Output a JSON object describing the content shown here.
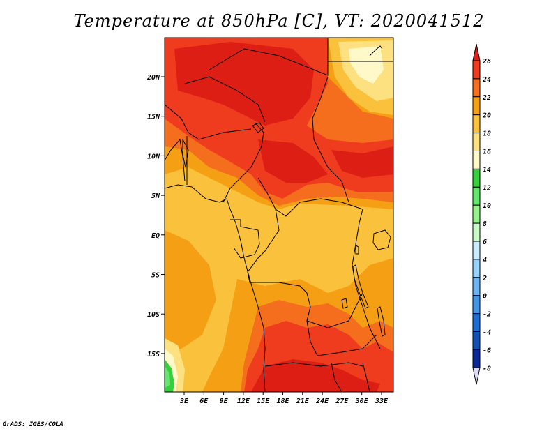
{
  "title": "Temperature at 850hPa [C], VT: 2020041512",
  "credit": "GrADS: IGES/COLA",
  "map": {
    "lat_labels": [
      "20N",
      "15N",
      "10N",
      "5N",
      "EQ",
      "5S",
      "10S",
      "15S"
    ],
    "lon_labels": [
      "3E",
      "6E",
      "9E",
      "12E",
      "15E",
      "18E",
      "21E",
      "24E",
      "27E",
      "30E",
      "33E"
    ]
  },
  "colorbar": {
    "levels": [
      "26",
      "24",
      "22",
      "20",
      "18",
      "16",
      "14",
      "12",
      "10",
      "8",
      "6",
      "4",
      "2",
      "0",
      "-2",
      "-4",
      "-6",
      "-8"
    ],
    "colors": [
      "#dc1e14",
      "#f03c1e",
      "#f56e1e",
      "#f5a014",
      "#fac23c",
      "#fde080",
      "#fff8c8",
      "#37d03c",
      "#64e66e",
      "#96f08c",
      "#c8fac8",
      "#c8ebff",
      "#96d2fa",
      "#6eb4f0",
      "#4696e6",
      "#1e6ed2",
      "#1450b4",
      "#0a2896",
      "#0a0a6e"
    ],
    "over_color": "#dc1e14",
    "under_color": "#dcdcf5"
  }
}
